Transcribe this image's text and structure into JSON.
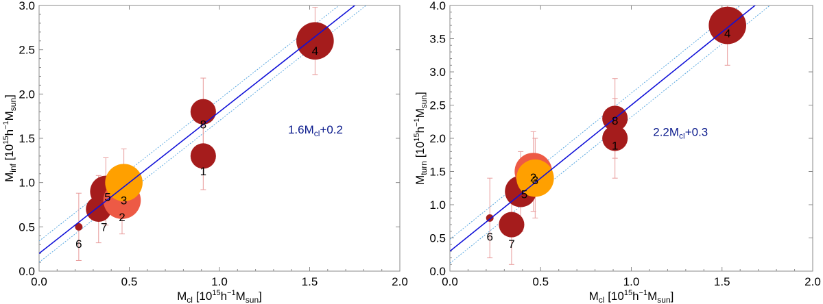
{
  "chart_data": [
    {
      "type": "scatter",
      "xlabel": {
        "base": "M",
        "sub": "cl",
        "unit_pre": " [10",
        "unit_sup1": "15",
        "unit_mid": "h",
        "unit_sup2": "−1",
        "unit_post": "M",
        "unit_sub": "sun",
        "unit_end": "]"
      },
      "ylabel": {
        "base": "M",
        "sub": "inf",
        "unit_pre": " [10",
        "unit_sup1": "15",
        "unit_mid": "h",
        "unit_sup2": "−1",
        "unit_post": "M",
        "unit_sub": "sun",
        "unit_end": "]"
      },
      "xlim": [
        0.0,
        2.0
      ],
      "ylim": [
        0.0,
        3.0
      ],
      "xticks": [
        "0.0",
        "0.5",
        "1.0",
        "1.5",
        "2.0"
      ],
      "yticks": [
        "0.0",
        "0.5",
        "1.0",
        "1.5",
        "2.0",
        "2.5",
        "3.0"
      ],
      "fit": {
        "slope": 1.6,
        "intercept": 0.2,
        "label_pre": "1.6M",
        "label_sub": "cl",
        "label_post": "+0.2",
        "label_at": [
          1.38,
          1.6
        ]
      },
      "band": {
        "upper_intercept": 0.34,
        "lower_intercept": 0.1
      },
      "points": [
        {
          "label": "6",
          "x": 0.22,
          "y": 0.5,
          "err": 0.38,
          "size": 0.25,
          "color": "#a51c1c",
          "label_dx": 0,
          "label_dy": 0.19
        },
        {
          "label": "7",
          "x": 0.33,
          "y": 0.7,
          "err": 0.38,
          "size": 0.85,
          "color": "#a51c1c",
          "label_dx": 0.03,
          "label_dy": 0.2
        },
        {
          "label": "5",
          "x": 0.37,
          "y": 0.9,
          "err": 0.38,
          "size": 1.05,
          "color": "#a51c1c",
          "label_dx": 0.01,
          "label_dy": 0.06
        },
        {
          "label": "2",
          "x": 0.46,
          "y": 0.8,
          "err": 0.38,
          "size": 1.25,
          "color": "#ed5a45",
          "label_dx": 0.0,
          "label_dy": 0.19
        },
        {
          "label": "3",
          "x": 0.47,
          "y": 1.0,
          "err": 0.38,
          "size": 1.25,
          "color": "#ffa000",
          "label_dx": 0.0,
          "label_dy": 0.2
        },
        {
          "label": "8",
          "x": 0.91,
          "y": 1.8,
          "err": 0.38,
          "size": 0.85,
          "color": "#a51c1c",
          "label_dx": 0.0,
          "label_dy": 0.14
        },
        {
          "label": "1",
          "x": 0.91,
          "y": 1.3,
          "err": 0.38,
          "size": 0.85,
          "color": "#a51c1c",
          "label_dx": 0.0,
          "label_dy": 0.17
        },
        {
          "label": "4",
          "x": 1.53,
          "y": 2.6,
          "err": 0.38,
          "size": 1.25,
          "color": "#a51c1c",
          "label_dx": 0.0,
          "label_dy": 0.11
        }
      ]
    },
    {
      "type": "scatter",
      "xlabel": {
        "base": "M",
        "sub": "cl",
        "unit_pre": " [10",
        "unit_sup1": "15",
        "unit_mid": "h",
        "unit_sup2": "−1",
        "unit_post": "M",
        "unit_sub": "sun",
        "unit_end": "]"
      },
      "ylabel": {
        "base": "M",
        "sub": "turn",
        "unit_pre": " [10",
        "unit_sup1": "15",
        "unit_mid": "h",
        "unit_sup2": "−1",
        "unit_post": "M",
        "unit_sub": "sun",
        "unit_end": "]"
      },
      "xlim": [
        0.0,
        2.0
      ],
      "ylim": [
        0.0,
        4.0
      ],
      "xticks": [
        "0.0",
        "0.5",
        "1.0",
        "1.5",
        "2.0"
      ],
      "yticks": [
        "0.0",
        "0.5",
        "1.0",
        "1.5",
        "2.0",
        "2.5",
        "3.0",
        "3.5",
        "4.0"
      ],
      "fit": {
        "slope": 2.2,
        "intercept": 0.3,
        "label_pre": "2.2M",
        "label_sub": "cl",
        "label_post": "+0.3",
        "label_at": [
          1.12,
          2.1
        ]
      },
      "band": {
        "upper_intercept": 0.48,
        "lower_intercept": 0.12
      },
      "points": [
        {
          "label": "6",
          "x": 0.22,
          "y": 0.8,
          "err": 0.6,
          "size": 0.25,
          "color": "#a51c1c",
          "label_dx": 0,
          "label_dy": 0.28
        },
        {
          "label": "7",
          "x": 0.34,
          "y": 0.7,
          "err": 0.6,
          "size": 0.85,
          "color": "#a51c1c",
          "label_dx": 0.0,
          "label_dy": 0.29
        },
        {
          "label": "5",
          "x": 0.39,
          "y": 1.2,
          "err": 0.6,
          "size": 1.05,
          "color": "#a51c1c",
          "label_dx": 0.02,
          "label_dy": 0.04
        },
        {
          "label": "2",
          "x": 0.46,
          "y": 1.5,
          "err": 0.6,
          "size": 1.25,
          "color": "#ed5a45",
          "label_dx": 0.0,
          "label_dy": 0.09
        },
        {
          "label": "3",
          "x": 0.47,
          "y": 1.4,
          "err": 0.6,
          "size": 1.25,
          "color": "#ffa000",
          "label_dx": 0.0,
          "label_dy": 0.03
        },
        {
          "label": "8",
          "x": 0.91,
          "y": 2.3,
          "err": 0.6,
          "size": 0.85,
          "color": "#a51c1c",
          "label_dx": 0.0,
          "label_dy": 0.03
        },
        {
          "label": "1",
          "x": 0.91,
          "y": 2.0,
          "err": 0.6,
          "size": 0.85,
          "color": "#a51c1c",
          "label_dx": 0.0,
          "label_dy": 0.11
        },
        {
          "label": "4",
          "x": 1.53,
          "y": 3.7,
          "err": 0.6,
          "size": 1.25,
          "color": "#a51c1c",
          "label_dx": 0.0,
          "label_dy": 0.12
        }
      ]
    }
  ],
  "colors": {
    "fit": "#1010d8",
    "band": "#5aa8e0",
    "errorbar": "#e89a9a",
    "axis": "#888888"
  }
}
